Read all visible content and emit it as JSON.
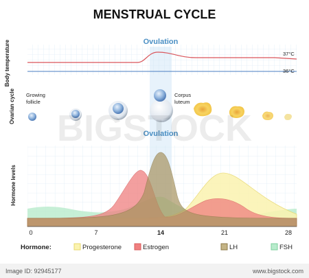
{
  "title": "MENSTRUAL CYCLE",
  "temperature_panel": {
    "axis_label": "Body temperature",
    "ovulation_label": "Ovulation",
    "high_label": "37°C",
    "low_label": "36°C"
  },
  "ovarian_panel": {
    "axis_label": "Ovarian cycle",
    "follicle_label": [
      "Growing",
      "follicle"
    ],
    "luteum_label": [
      "Corpus",
      "luteum"
    ]
  },
  "hormone_panel": {
    "axis_label": "Hormone levels",
    "ovulation_label": "Ovulation",
    "day_ticks": [
      "0",
      "7",
      "14",
      "21",
      "28"
    ]
  },
  "legend": {
    "title": "Hormone:",
    "items": [
      "Progesterone",
      "Estrogen",
      "LH",
      "FSH"
    ]
  },
  "watermark": "BIGSTOCK",
  "footer": {
    "image_id": "Image ID: 92945177",
    "site": "www.bigstock.com"
  }
}
